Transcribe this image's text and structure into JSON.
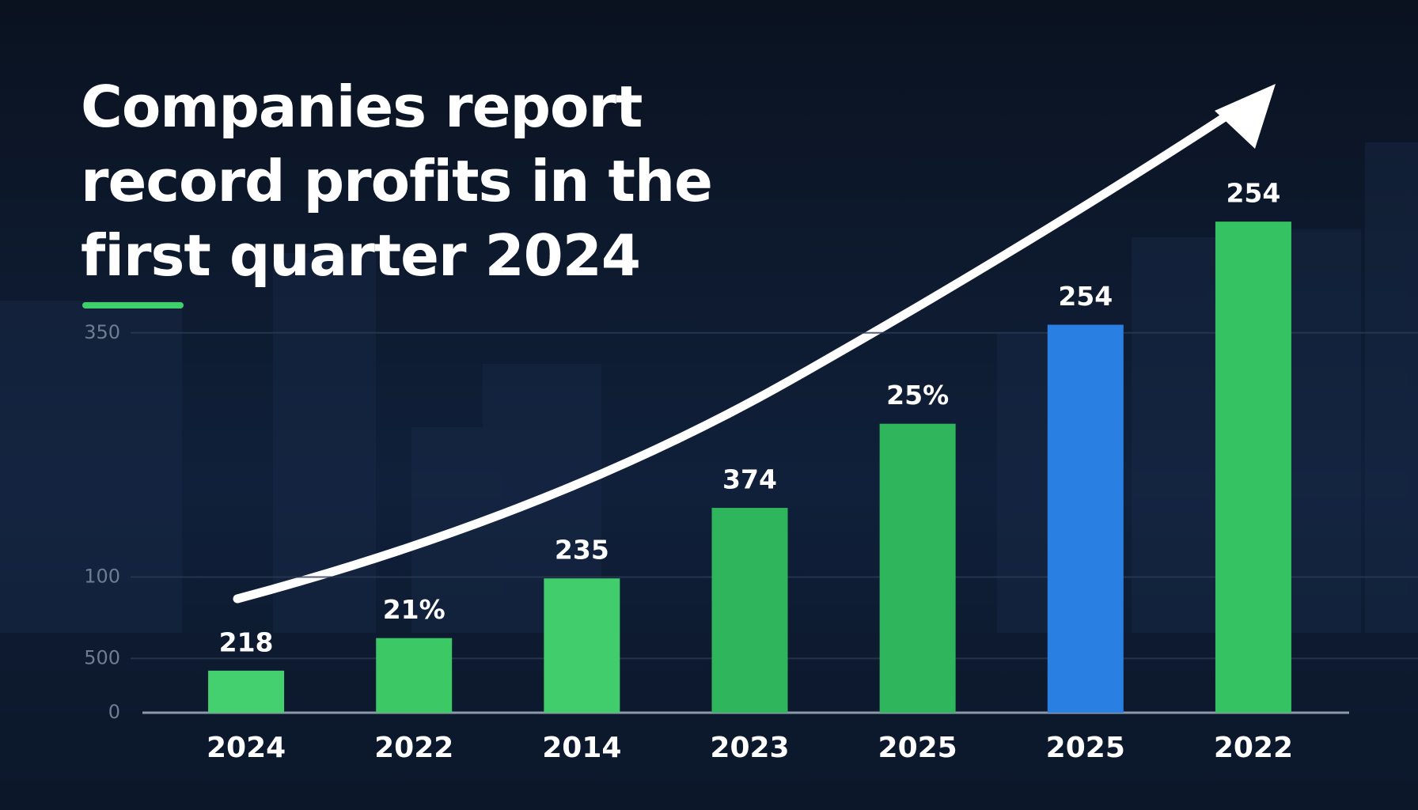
{
  "chart_data": {
    "type": "bar",
    "title": "Companies report record profits in the first quarter 2024",
    "categories": [
      "2024",
      "2022",
      "2014",
      "2023",
      "2025",
      "2025",
      "2022"
    ],
    "values": [
      31,
      55,
      99,
      151,
      213,
      286,
      362
    ],
    "annotations": [
      "218",
      "21%",
      "235",
      "374",
      "25%",
      "254",
      "254"
    ],
    "colors": [
      "#44d06f",
      "#3dc866",
      "#42cd6c",
      "#2fb55b",
      "#2fb55b",
      "#2a7fe3",
      "#35c262"
    ],
    "ylim": [
      0,
      400
    ],
    "yticks": [
      0,
      {
        "value": 40,
        "label": "500"
      },
      100,
      {
        "value": 280,
        "label": "350"
      }
    ],
    "grid": true
  }
}
